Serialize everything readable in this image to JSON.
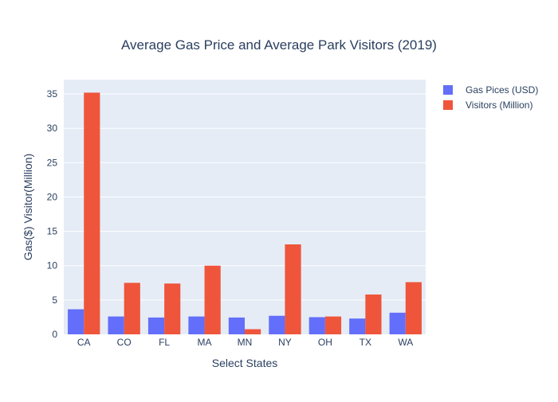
{
  "chart_data": {
    "type": "bar",
    "title": "Average Gas Price and Average Park Visitors (2019)",
    "xlabel": "Select States",
    "ylabel": "Gas($) Visitor(Million)",
    "categories": [
      "CA",
      "CO",
      "FL",
      "MA",
      "MN",
      "NY",
      "OH",
      "TX",
      "WA"
    ],
    "series": [
      {
        "name": "Gas Pices (USD)",
        "color": "#636efa",
        "values": [
          3.65,
          2.6,
          2.45,
          2.6,
          2.45,
          2.7,
          2.5,
          2.3,
          3.15
        ]
      },
      {
        "name": "Visitors (Million)",
        "color": "#ef553b",
        "values": [
          35.2,
          7.5,
          7.4,
          10.0,
          0.75,
          13.1,
          2.6,
          5.8,
          7.6
        ]
      }
    ],
    "ylim": [
      0,
      37.1
    ],
    "yticks": [
      0,
      5,
      10,
      15,
      20,
      25,
      30,
      35
    ],
    "grid": true,
    "legend": "top-right",
    "plot_background": "#e5ecf6",
    "text_color": "#2a3f5f"
  }
}
